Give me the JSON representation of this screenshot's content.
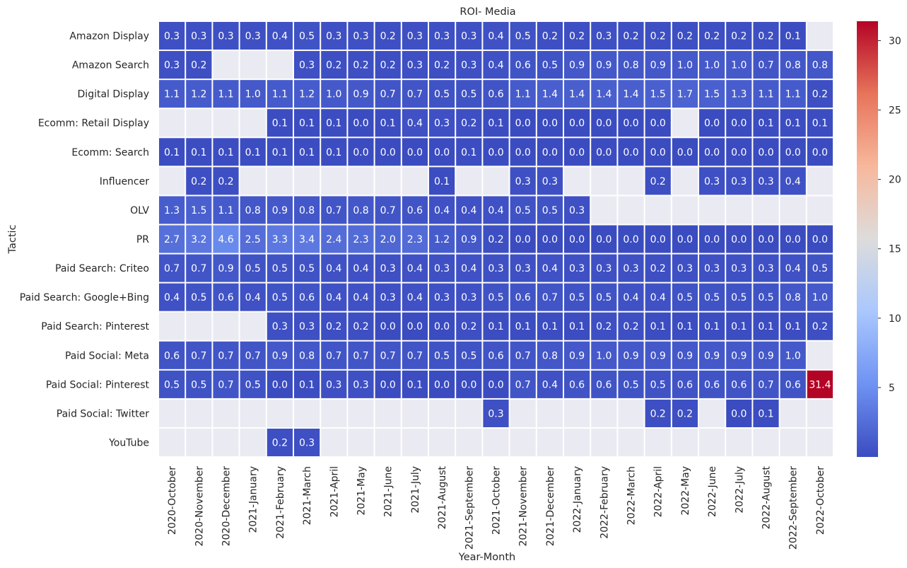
{
  "chart_data": {
    "type": "heatmap",
    "title": "ROI- Media",
    "xlabel": "Year-Month",
    "ylabel": "Tactic",
    "missing_color": "#eaeaf2",
    "colormap": "coolwarm",
    "colormap_stops": [
      "#3b4cc0",
      "#6f92f3",
      "#aac7fd",
      "#dddcdc",
      "#f7b89c",
      "#e7745b",
      "#b40426"
    ],
    "vmin": 0.0,
    "vmax": 31.4,
    "colorbar_ticks": [
      "5",
      "10",
      "15",
      "20",
      "25",
      "30"
    ],
    "colorbar_tick_values": [
      5,
      10,
      15,
      20,
      25,
      30
    ],
    "columns": [
      "2020-October",
      "2020-November",
      "2020-December",
      "2021-January",
      "2021-February",
      "2021-March",
      "2021-April",
      "2021-May",
      "2021-June",
      "2021-July",
      "2021-August",
      "2021-September",
      "2021-October",
      "2021-November",
      "2021-December",
      "2022-January",
      "2022-February",
      "2022-March",
      "2022-April",
      "2022-May",
      "2022-June",
      "2022-July",
      "2022-August",
      "2022-September",
      "2022-October"
    ],
    "rows": [
      "Amazon Display",
      "Amazon Search",
      "Digital Display",
      "Ecomm: Retail Display",
      "Ecomm: Search",
      "Influencer",
      "OLV",
      "PR",
      "Paid Search: Criteo",
      "Paid Search: Google+Bing",
      "Paid Search: Pinterest",
      "Paid Social: Meta",
      "Paid Social: Pinterest",
      "Paid Social: Twitter",
      "YouTube"
    ],
    "values": [
      [
        "0.3",
        "0.3",
        "0.3",
        "0.3",
        "0.4",
        "0.5",
        "0.3",
        "0.3",
        "0.2",
        "0.3",
        "0.3",
        "0.3",
        "0.4",
        "0.5",
        "0.2",
        "0.2",
        "0.3",
        "0.2",
        "0.2",
        "0.2",
        "0.2",
        "0.2",
        "0.2",
        "0.1",
        null
      ],
      [
        "0.3",
        "0.2",
        null,
        null,
        null,
        "0.3",
        "0.2",
        "0.2",
        "0.2",
        "0.3",
        "0.2",
        "0.3",
        "0.4",
        "0.6",
        "0.5",
        "0.9",
        "0.9",
        "0.8",
        "0.9",
        "1.0",
        "1.0",
        "1.0",
        "0.7",
        "0.8",
        "0.8"
      ],
      [
        "1.1",
        "1.2",
        "1.1",
        "1.0",
        "1.1",
        "1.2",
        "1.0",
        "0.9",
        "0.7",
        "0.7",
        "0.5",
        "0.5",
        "0.6",
        "1.1",
        "1.4",
        "1.4",
        "1.4",
        "1.4",
        "1.5",
        "1.7",
        "1.5",
        "1.3",
        "1.1",
        "1.1",
        "0.2"
      ],
      [
        null,
        null,
        null,
        null,
        "0.1",
        "0.1",
        "0.1",
        "0.0",
        "0.1",
        "0.4",
        "0.3",
        "0.2",
        "0.1",
        "0.0",
        "0.0",
        "0.0",
        "0.0",
        "0.0",
        "0.0",
        null,
        "0.0",
        "0.0",
        "0.1",
        "0.1",
        "0.1"
      ],
      [
        "0.1",
        "0.1",
        "0.1",
        "0.1",
        "0.1",
        "0.1",
        "0.1",
        "0.0",
        "0.0",
        "0.0",
        "0.0",
        "0.1",
        "0.0",
        "0.0",
        "0.0",
        "0.0",
        "0.0",
        "0.0",
        "0.0",
        "0.0",
        "0.0",
        "0.0",
        "0.0",
        "0.0",
        "0.0"
      ],
      [
        null,
        "0.2",
        "0.2",
        null,
        null,
        null,
        null,
        null,
        null,
        null,
        "0.1",
        null,
        null,
        "0.3",
        "0.3",
        null,
        null,
        null,
        "0.2",
        null,
        "0.3",
        "0.3",
        "0.3",
        "0.4",
        null
      ],
      [
        "1.3",
        "1.5",
        "1.1",
        "0.8",
        "0.9",
        "0.8",
        "0.7",
        "0.8",
        "0.7",
        "0.6",
        "0.4",
        "0.4",
        "0.4",
        "0.5",
        "0.5",
        "0.3",
        null,
        null,
        null,
        null,
        null,
        null,
        null,
        null,
        null
      ],
      [
        "2.7",
        "3.2",
        "4.6",
        "2.5",
        "3.3",
        "3.4",
        "2.4",
        "2.3",
        "2.0",
        "2.3",
        "1.2",
        "0.9",
        "0.2",
        "0.0",
        "0.0",
        "0.0",
        "0.0",
        "0.0",
        "0.0",
        "0.0",
        "0.0",
        "0.0",
        "0.0",
        "0.0",
        "0.0"
      ],
      [
        "0.7",
        "0.7",
        "0.9",
        "0.5",
        "0.5",
        "0.5",
        "0.4",
        "0.4",
        "0.3",
        "0.4",
        "0.3",
        "0.4",
        "0.3",
        "0.3",
        "0.4",
        "0.3",
        "0.3",
        "0.3",
        "0.2",
        "0.3",
        "0.3",
        "0.3",
        "0.3",
        "0.4",
        "0.5"
      ],
      [
        "0.4",
        "0.5",
        "0.6",
        "0.4",
        "0.5",
        "0.6",
        "0.4",
        "0.4",
        "0.3",
        "0.4",
        "0.3",
        "0.3",
        "0.5",
        "0.6",
        "0.7",
        "0.5",
        "0.5",
        "0.4",
        "0.4",
        "0.5",
        "0.5",
        "0.5",
        "0.5",
        "0.8",
        "1.0"
      ],
      [
        null,
        null,
        null,
        null,
        "0.3",
        "0.3",
        "0.2",
        "0.2",
        "0.0",
        "0.0",
        "0.0",
        "0.2",
        "0.1",
        "0.1",
        "0.1",
        "0.1",
        "0.2",
        "0.2",
        "0.1",
        "0.1",
        "0.1",
        "0.1",
        "0.1",
        "0.1",
        "0.2"
      ],
      [
        "0.6",
        "0.7",
        "0.7",
        "0.7",
        "0.9",
        "0.8",
        "0.7",
        "0.7",
        "0.7",
        "0.7",
        "0.5",
        "0.5",
        "0.6",
        "0.7",
        "0.8",
        "0.9",
        "1.0",
        "0.9",
        "0.9",
        "0.9",
        "0.9",
        "0.9",
        "0.9",
        "1.0",
        null
      ],
      [
        "0.5",
        "0.5",
        "0.7",
        "0.5",
        "0.0",
        "0.1",
        "0.3",
        "0.3",
        "0.0",
        "0.1",
        "0.0",
        "0.0",
        "0.0",
        "0.7",
        "0.4",
        "0.6",
        "0.6",
        "0.5",
        "0.5",
        "0.6",
        "0.6",
        "0.6",
        "0.7",
        "0.6",
        "31.4"
      ],
      [
        null,
        null,
        null,
        null,
        null,
        null,
        null,
        null,
        null,
        null,
        null,
        null,
        "0.3",
        null,
        null,
        null,
        null,
        null,
        "0.2",
        "0.2",
        null,
        "0.0",
        "0.1",
        null,
        null
      ],
      [
        null,
        null,
        null,
        null,
        "0.2",
        "0.3",
        null,
        null,
        null,
        null,
        null,
        null,
        null,
        null,
        null,
        null,
        null,
        null,
        null,
        null,
        null,
        null,
        null,
        null,
        null
      ]
    ]
  }
}
